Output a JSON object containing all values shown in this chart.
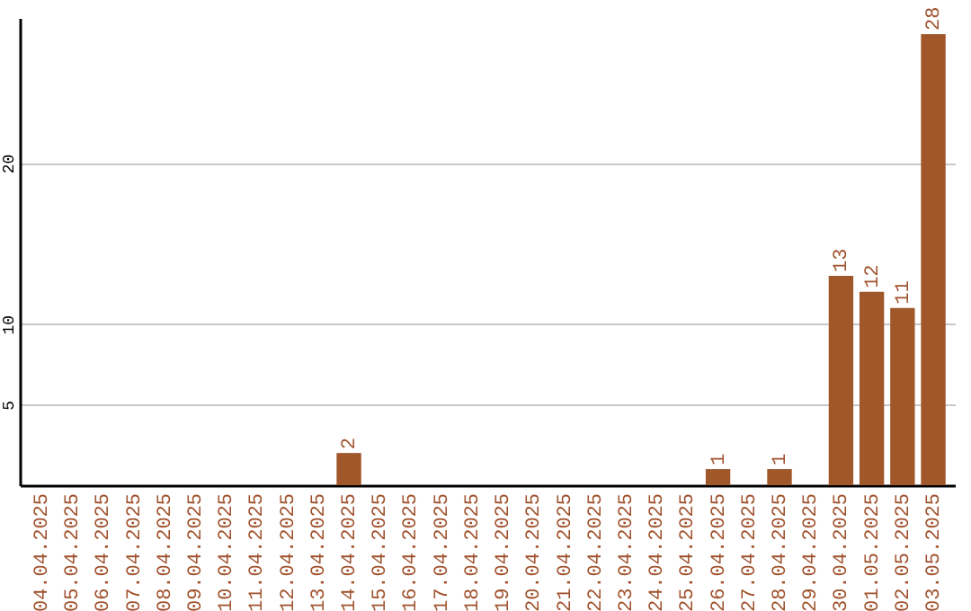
{
  "chart_data": {
    "type": "bar",
    "categories": [
      "04.04.2025",
      "05.04.2025",
      "06.04.2025",
      "07.04.2025",
      "08.04.2025",
      "09.04.2025",
      "10.04.2025",
      "11.04.2025",
      "12.04.2025",
      "13.04.2025",
      "14.04.2025",
      "15.04.2025",
      "16.04.2025",
      "17.04.2025",
      "18.04.2025",
      "19.04.2025",
      "20.04.2025",
      "21.04.2025",
      "22.04.2025",
      "23.04.2025",
      "24.04.2025",
      "25.04.2025",
      "26.04.2025",
      "27.04.2025",
      "28.04.2025",
      "29.04.2025",
      "30.04.2025",
      "01.05.2025",
      "02.05.2025",
      "03.05.2025"
    ],
    "values": [
      0,
      0,
      0,
      0,
      0,
      0,
      0,
      0,
      0,
      0,
      2,
      0,
      0,
      0,
      0,
      0,
      0,
      0,
      0,
      0,
      0,
      0,
      1,
      0,
      1,
      0,
      13,
      12,
      11,
      28
    ],
    "value_labels": [
      null,
      null,
      null,
      null,
      null,
      null,
      null,
      null,
      null,
      null,
      "2",
      null,
      null,
      null,
      null,
      null,
      null,
      null,
      null,
      null,
      null,
      null,
      "1",
      null,
      "1",
      null,
      "13",
      "12",
      "11",
      "28"
    ],
    "color": "#a0572a",
    "ylim": [
      0,
      29
    ],
    "yticks": [
      5,
      10,
      20
    ],
    "grid": true
  }
}
